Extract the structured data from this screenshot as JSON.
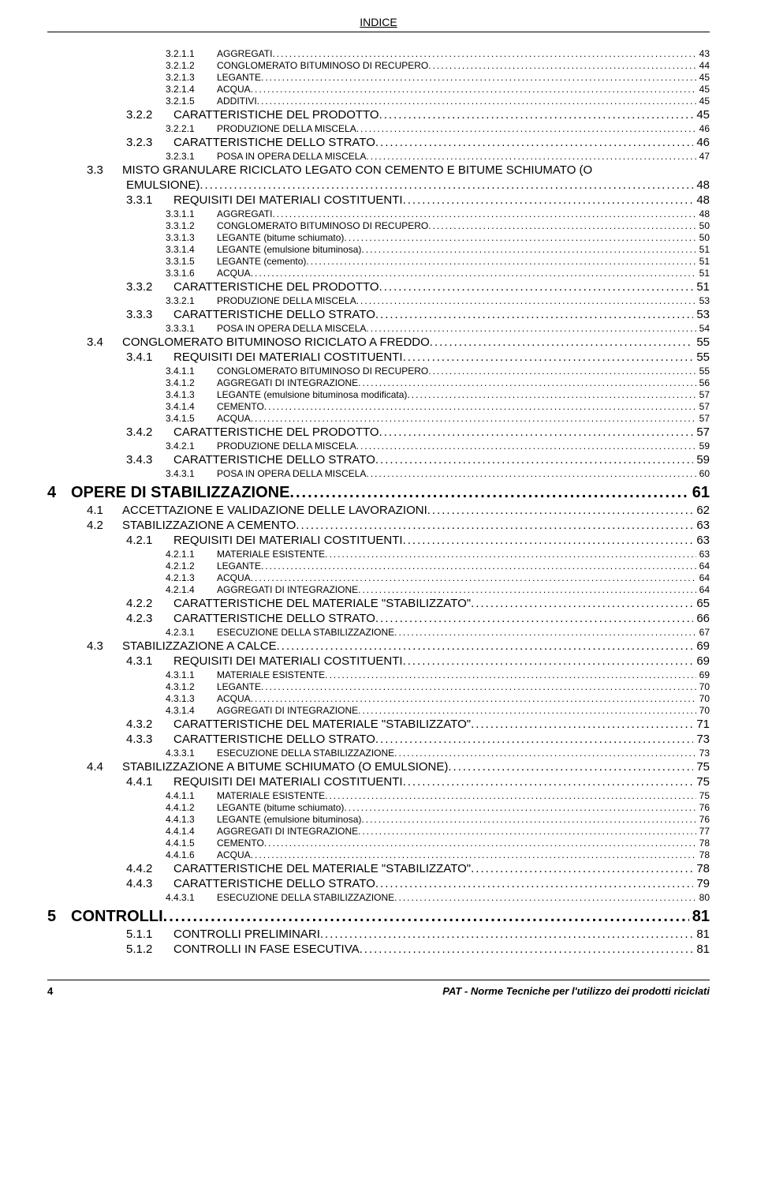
{
  "header": {
    "label": "INDICE"
  },
  "footer": {
    "page_number": "4",
    "doc_title": "PAT - Norme Tecniche per l'utilizzo dei prodotti riciclati"
  },
  "colors": {
    "text": "#000000",
    "background": "#ffffff",
    "rule": "#000000"
  },
  "typography": {
    "level1_fontsize": 20,
    "level1_weight": "bold",
    "level2_fontsize": 15,
    "level3_fontsize": 15,
    "level4_fontsize": 12,
    "header_fontsize": 14,
    "footer_fontsize": 13
  },
  "toc": [
    {
      "level": 4,
      "num": "3.2.1.1",
      "title": "AGGREGATI",
      "page": "43"
    },
    {
      "level": 4,
      "num": "3.2.1.2",
      "title": "CONGLOMERATO BITUMINOSO DI RECUPERO",
      "page": "44"
    },
    {
      "level": 4,
      "num": "3.2.1.3",
      "title": "LEGANTE",
      "page": "45"
    },
    {
      "level": 4,
      "num": "3.2.1.4",
      "title": "ACQUA",
      "page": "45"
    },
    {
      "level": 4,
      "num": "3.2.1.5",
      "title": "ADDITIVI",
      "page": "45"
    },
    {
      "level": 3,
      "num": "3.2.2",
      "title": "CARATTERISTICHE DEL PRODOTTO",
      "page": "45"
    },
    {
      "level": 4,
      "num": "3.2.2.1",
      "title": "PRODUZIONE DELLA MISCELA",
      "page": "46"
    },
    {
      "level": 3,
      "num": "3.2.3",
      "title": "CARATTERISTICHE DELLO STRATO",
      "page": "46"
    },
    {
      "level": 4,
      "num": "3.2.3.1",
      "title": "POSA IN OPERA DELLA MISCELA",
      "page": "47"
    },
    {
      "level": 2,
      "num": "3.3",
      "title": "MISTO GRANULARE RICICLATO LEGATO CON CEMENTO E BITUME SCHIUMATO (O",
      "title2": "EMULSIONE)",
      "page": "48"
    },
    {
      "level": 3,
      "num": "3.3.1",
      "title": "REQUISITI DEI MATERIALI COSTITUENTI",
      "page": "48"
    },
    {
      "level": 4,
      "num": "3.3.1.1",
      "title": "AGGREGATI",
      "page": "48"
    },
    {
      "level": 4,
      "num": "3.3.1.2",
      "title": "CONGLOMERATO BITUMINOSO DI RECUPERO",
      "page": "50"
    },
    {
      "level": 4,
      "num": "3.3.1.3",
      "title": "LEGANTE (bitume schiumato)",
      "page": "50"
    },
    {
      "level": 4,
      "num": "3.3.1.4",
      "title": "LEGANTE (emulsione bituminosa)",
      "page": "51"
    },
    {
      "level": 4,
      "num": "3.3.1.5",
      "title": "LEGANTE (cemento)",
      "page": "51"
    },
    {
      "level": 4,
      "num": "3.3.1.6",
      "title": "ACQUA",
      "page": "51"
    },
    {
      "level": 3,
      "num": "3.3.2",
      "title": "CARATTERISTICHE DEL PRODOTTO",
      "page": "51"
    },
    {
      "level": 4,
      "num": "3.3.2.1",
      "title": "PRODUZIONE DELLA MISCELA",
      "page": "53"
    },
    {
      "level": 3,
      "num": "3.3.3",
      "title": "CARATTERISTICHE DELLO STRATO",
      "page": "53"
    },
    {
      "level": 4,
      "num": "3.3.3.1",
      "title": "POSA IN OPERA DELLA MISCELA",
      "page": "54"
    },
    {
      "level": 2,
      "num": "3.4",
      "title": "CONGLOMERATO BITUMINOSO RICICLATO A FREDDO",
      "page": "55"
    },
    {
      "level": 3,
      "num": "3.4.1",
      "title": "REQUISITI DEI MATERIALI COSTITUENTI",
      "page": "55"
    },
    {
      "level": 4,
      "num": "3.4.1.1",
      "title": "CONGLOMERATO BITUMINOSO DI RECUPERO",
      "page": "55"
    },
    {
      "level": 4,
      "num": "3.4.1.2",
      "title": "AGGREGATI DI INTEGRAZIONE",
      "page": "56"
    },
    {
      "level": 4,
      "num": "3.4.1.3",
      "title": "LEGANTE (emulsione bituminosa modificata)",
      "page": "57"
    },
    {
      "level": 4,
      "num": "3.4.1.4",
      "title": "CEMENTO",
      "page": "57"
    },
    {
      "level": 4,
      "num": "3.4.1.5",
      "title": "ACQUA",
      "page": "57"
    },
    {
      "level": 3,
      "num": "3.4.2",
      "title": "CARATTERISTICHE DEL PRODOTTO",
      "page": "57"
    },
    {
      "level": 4,
      "num": "3.4.2.1",
      "title": "PRODUZIONE DELLA MISCELA",
      "page": "59"
    },
    {
      "level": 3,
      "num": "3.4.3",
      "title": "CARATTERISTICHE DELLO STRATO",
      "page": "59"
    },
    {
      "level": 4,
      "num": "3.4.3.1",
      "title": "POSA IN OPERA DELLA MISCELA",
      "page": "60"
    },
    {
      "level": 1,
      "num": "4",
      "title": "OPERE DI STABILIZZAZIONE",
      "page": "61"
    },
    {
      "level": 2,
      "num": "4.1",
      "title": "ACCETTAZIONE E VALIDAZIONE DELLE LAVORAZIONI",
      "page": "62"
    },
    {
      "level": 2,
      "num": "4.2",
      "title": "STABILIZZAZIONE A CEMENTO",
      "page": "63"
    },
    {
      "level": 3,
      "num": "4.2.1",
      "title": "REQUISITI DEI MATERIALI COSTITUENTI",
      "page": "63"
    },
    {
      "level": 4,
      "num": "4.2.1.1",
      "title": "MATERIALE ESISTENTE",
      "page": "63"
    },
    {
      "level": 4,
      "num": "4.2.1.2",
      "title": "LEGANTE",
      "page": "64"
    },
    {
      "level": 4,
      "num": "4.2.1.3",
      "title": "ACQUA",
      "page": "64"
    },
    {
      "level": 4,
      "num": "4.2.1.4",
      "title": "AGGREGATI DI INTEGRAZIONE",
      "page": "64"
    },
    {
      "level": 3,
      "num": "4.2.2",
      "title": "CARATTERISTICHE DEL MATERIALE \"STABILIZZATO\"",
      "page": "65"
    },
    {
      "level": 3,
      "num": "4.2.3",
      "title": "CARATTERISTICHE DELLO STRATO",
      "page": "66"
    },
    {
      "level": 4,
      "num": "4.2.3.1",
      "title": "ESECUZIONE DELLA STABILIZZAZIONE",
      "page": "67"
    },
    {
      "level": 2,
      "num": "4.3",
      "title": "STABILIZZAZIONE A CALCE",
      "page": "69"
    },
    {
      "level": 3,
      "num": "4.3.1",
      "title": "REQUISITI DEI MATERIALI COSTITUENTI",
      "page": "69"
    },
    {
      "level": 4,
      "num": "4.3.1.1",
      "title": "MATERIALE ESISTENTE",
      "page": "69"
    },
    {
      "level": 4,
      "num": "4.3.1.2",
      "title": "LEGANTE",
      "page": "70"
    },
    {
      "level": 4,
      "num": "4.3.1.3",
      "title": "ACQUA",
      "page": "70"
    },
    {
      "level": 4,
      "num": "4.3.1.4",
      "title": "AGGREGATI DI INTEGRAZIONE",
      "page": "70"
    },
    {
      "level": 3,
      "num": "4.3.2",
      "title": "CARATTERISTICHE DEL MATERIALE \"STABILIZZATO\"",
      "page": "71"
    },
    {
      "level": 3,
      "num": "4.3.3",
      "title": "CARATTERISTICHE DELLO STRATO",
      "page": "73"
    },
    {
      "level": 4,
      "num": "4.3.3.1",
      "title": "ESECUZIONE DELLA STABILIZZAZIONE",
      "page": "73"
    },
    {
      "level": 2,
      "num": "4.4",
      "title": "STABILIZZAZIONE A BITUME SCHIUMATO (O EMULSIONE)",
      "page": "75"
    },
    {
      "level": 3,
      "num": "4.4.1",
      "title": "REQUISITI DEI MATERIALI COSTITUENTI",
      "page": "75"
    },
    {
      "level": 4,
      "num": "4.4.1.1",
      "title": "MATERIALE ESISTENTE",
      "page": "75"
    },
    {
      "level": 4,
      "num": "4.4.1.2",
      "title": "LEGANTE (bitume schiumato)",
      "page": "76"
    },
    {
      "level": 4,
      "num": "4.4.1.3",
      "title": "LEGANTE (emulsione bituminosa)",
      "page": "76"
    },
    {
      "level": 4,
      "num": "4.4.1.4",
      "title": "AGGREGATI DI INTEGRAZIONE",
      "page": "77"
    },
    {
      "level": 4,
      "num": "4.4.1.5",
      "title": "CEMENTO",
      "page": "78"
    },
    {
      "level": 4,
      "num": "4.4.1.6",
      "title": "ACQUA",
      "page": "78"
    },
    {
      "level": 3,
      "num": "4.4.2",
      "title": "CARATTERISTICHE DEL MATERIALE \"STABILIZZATO\"",
      "page": "78"
    },
    {
      "level": 3,
      "num": "4.4.3",
      "title": "CARATTERISTICHE DELLO STRATO",
      "page": "79"
    },
    {
      "level": 4,
      "num": "4.4.3.1",
      "title": "ESECUZIONE DELLA STABILIZZAZIONE",
      "page": "80"
    },
    {
      "level": 1,
      "num": "5",
      "title": "CONTROLLI",
      "page": "81"
    },
    {
      "level": 3,
      "num": "5.1.1",
      "title": "CONTROLLI PRELIMINARI",
      "page": "81"
    },
    {
      "level": 3,
      "num": "5.1.2",
      "title": "CONTROLLI IN FASE ESECUTIVA",
      "page": "81"
    }
  ]
}
